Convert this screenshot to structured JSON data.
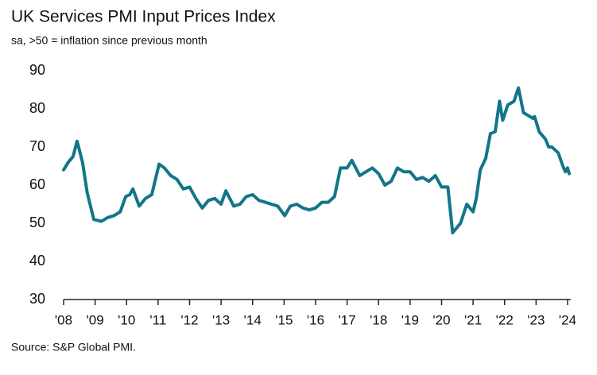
{
  "chart_data": {
    "type": "line",
    "title": "UK Services PMI Input Prices Index",
    "subtitle": "sa, >50 = inflation since previous month",
    "source": "Source: S&P Global PMI.",
    "color": "#13758a",
    "x": [
      2008.0,
      2008.15,
      2008.3,
      2008.43,
      2008.6,
      2008.75,
      2008.96,
      2009.2,
      2009.4,
      2009.6,
      2009.8,
      2009.97,
      2010.1,
      2010.2,
      2010.4,
      2010.6,
      2010.8,
      2011.03,
      2011.2,
      2011.4,
      2011.6,
      2011.8,
      2012.0,
      2012.2,
      2012.4,
      2012.6,
      2012.8,
      2013.0,
      2013.15,
      2013.4,
      2013.6,
      2013.8,
      2014.0,
      2014.2,
      2014.4,
      2014.6,
      2014.8,
      2015.02,
      2015.2,
      2015.4,
      2015.6,
      2015.8,
      2016.0,
      2016.2,
      2016.4,
      2016.6,
      2016.79,
      2017.0,
      2017.15,
      2017.4,
      2017.6,
      2017.8,
      2018.0,
      2018.2,
      2018.4,
      2018.6,
      2018.8,
      2019.0,
      2019.2,
      2019.4,
      2019.6,
      2019.8,
      2020.0,
      2020.2,
      2020.35,
      2020.6,
      2020.8,
      2021.0,
      2021.1,
      2021.23,
      2021.4,
      2021.55,
      2021.7,
      2021.84,
      2021.94,
      2022.1,
      2022.3,
      2022.44,
      2022.6,
      2022.8,
      2022.9,
      2022.95,
      2023.1,
      2023.3,
      2023.4,
      2023.5,
      2023.7,
      2023.85,
      2023.93,
      2024.0,
      2024.05
    ],
    "values": [
      64,
      66,
      67.5,
      71.5,
      66,
      58,
      51,
      50.5,
      51.5,
      52,
      53,
      57,
      57.5,
      59,
      54.5,
      56.5,
      57.5,
      65.5,
      64.5,
      62.5,
      61.5,
      59,
      59.5,
      56.5,
      54,
      56,
      56.5,
      55,
      58.5,
      54.5,
      55,
      57,
      57.5,
      56,
      55.5,
      55,
      54.5,
      52,
      54.5,
      55,
      54,
      53.5,
      54,
      55.5,
      55.5,
      57,
      64.5,
      64.5,
      66.5,
      62.5,
      63.5,
      64.5,
      63,
      60,
      61,
      64.5,
      63.5,
      63.5,
      61.5,
      62,
      61,
      62.5,
      59.5,
      59.5,
      47.5,
      50,
      55,
      53,
      56.5,
      64,
      67,
      73.5,
      74,
      82,
      77,
      81,
      82,
      85.5,
      79,
      78,
      77.5,
      78,
      74,
      72,
      70,
      70,
      68.5,
      65,
      63.5,
      64.5,
      63
    ],
    "xlim": [
      2008,
      2024.1
    ],
    "xticks": [
      {
        "value": 2008,
        "label": "'08"
      },
      {
        "value": 2009,
        "label": "'09"
      },
      {
        "value": 2010,
        "label": "'10"
      },
      {
        "value": 2011,
        "label": "'11"
      },
      {
        "value": 2012,
        "label": "'12"
      },
      {
        "value": 2013,
        "label": "'13"
      },
      {
        "value": 2014,
        "label": "'14"
      },
      {
        "value": 2015,
        "label": "'15"
      },
      {
        "value": 2016,
        "label": "'16"
      },
      {
        "value": 2017,
        "label": "'17"
      },
      {
        "value": 2018,
        "label": "'18"
      },
      {
        "value": 2019,
        "label": "'19"
      },
      {
        "value": 2020,
        "label": "'20"
      },
      {
        "value": 2021,
        "label": "'21"
      },
      {
        "value": 2022,
        "label": "'22"
      },
      {
        "value": 2023,
        "label": "'23"
      },
      {
        "value": 2024,
        "label": "'24"
      }
    ],
    "ylim": [
      30,
      90
    ],
    "yticks": [
      30,
      40,
      50,
      60,
      70,
      80,
      90
    ],
    "grid": false
  }
}
